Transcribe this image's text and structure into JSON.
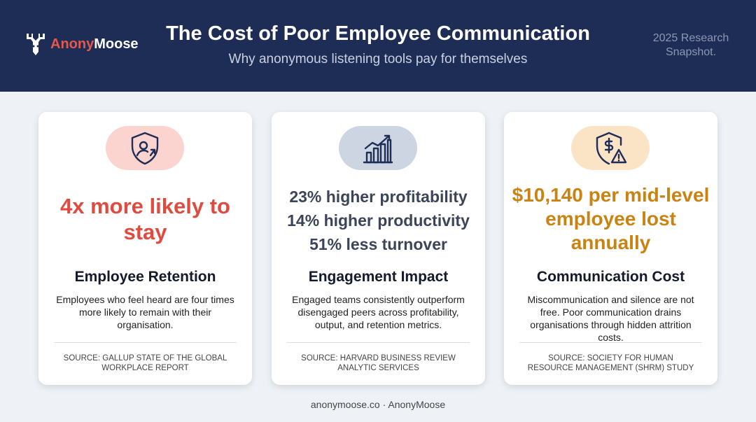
{
  "header": {
    "logo": {
      "part1": "Anony",
      "part2": "Moose"
    },
    "title": "The Cost of Poor Employee Communication",
    "subtitle": "Why anonymous listening tools pay for themselves",
    "badge": "2025 Research Snapshot."
  },
  "cards": [
    {
      "headline": "4x more likely to stay",
      "title": "Employee Retention",
      "description": "Employees who feel heard are four times more likely to remain with their organisation.",
      "source": "SOURCE: GALLUP STATE OF THE GLOBAL WORKPLACE REPORT"
    },
    {
      "headline_lines": [
        "23% higher profitability",
        "14% higher productivity",
        "51% less turnover"
      ],
      "title": "Engagement Impact",
      "description": "Engaged teams consistently outperform disengaged peers across profitability, output, and retention metrics.",
      "source": "SOURCE: HARVARD BUSINESS REVIEW ANALYTIC SERVICES"
    },
    {
      "headline": "$10,140 per mid-level employee lost annually",
      "title": "Communication Cost",
      "description": "Miscommunication and silence are not free. Poor communication drains organisations through hidden attrition costs.",
      "source": "SOURCE: SOCIETY FOR HUMAN RESOURCE MANAGEMENT (SHRM) STUDY"
    }
  ],
  "footer": "anonymoose.co · AnonyMoose"
}
